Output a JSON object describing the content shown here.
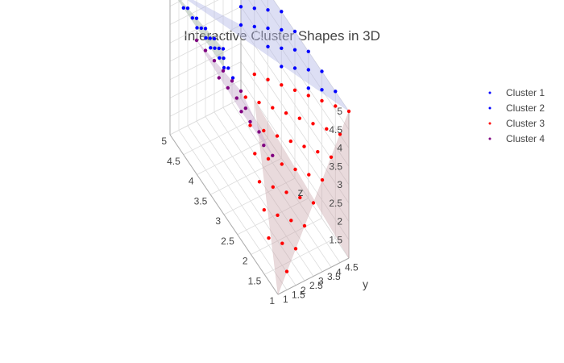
{
  "chart_data": {
    "type": "scatter3d",
    "title": "Interactive Cluster Shapes in 3D",
    "axes": {
      "x": {
        "label": "",
        "range": [
          1,
          5
        ],
        "ticks": [
          "1",
          "1.5",
          "2",
          "2.5",
          "3",
          "3.5",
          "4",
          "4.5",
          "5"
        ]
      },
      "y": {
        "label": "y",
        "range": [
          1,
          5
        ],
        "ticks": [
          "1",
          "1.5",
          "2",
          "2.5",
          "3",
          "3.5",
          "4",
          "4.5"
        ]
      },
      "z": {
        "label": "z",
        "range": [
          1,
          5
        ],
        "ticks": [
          "1.5",
          "2",
          "2.5",
          "3",
          "3.5",
          "4",
          "4.5",
          "5"
        ]
      }
    },
    "legend_position": "top-right",
    "series": [
      {
        "name": "Cluster 1",
        "color": "#0000ff",
        "surface_color": "#b3b8e6",
        "points": [
          [
            5,
            5,
            5
          ],
          [
            5,
            5,
            4.5
          ],
          [
            5,
            5,
            4
          ],
          [
            5,
            5,
            3.5
          ],
          [
            5,
            5,
            3
          ],
          [
            4.5,
            5,
            5
          ],
          [
            4.5,
            5,
            4.5
          ],
          [
            4.5,
            5,
            4
          ],
          [
            4.5,
            5,
            3.5
          ],
          [
            4,
            5,
            5
          ],
          [
            4,
            5,
            4.5
          ],
          [
            4,
            5,
            4
          ],
          [
            4,
            5,
            3.5
          ],
          [
            3.5,
            5,
            5
          ],
          [
            3.5,
            5,
            4.5
          ],
          [
            3.5,
            5,
            4
          ],
          [
            3.5,
            5,
            3.5
          ],
          [
            3,
            5,
            5
          ],
          [
            3,
            5,
            4.5
          ],
          [
            3,
            5,
            4
          ],
          [
            2.5,
            5,
            5
          ],
          [
            2.5,
            5,
            4.5
          ],
          [
            2.5,
            5,
            4
          ],
          [
            2,
            5,
            5
          ],
          [
            2,
            5,
            4.5
          ],
          [
            1.5,
            5,
            5
          ]
        ]
      },
      {
        "name": "Cluster 2",
        "color": "#0000ff",
        "surface_color": "#aab9aa",
        "points": [
          [
            5,
            1,
            5
          ],
          [
            5,
            1.5,
            4.6
          ],
          [
            5,
            2,
            4.2
          ],
          [
            5,
            2.5,
            3.8
          ],
          [
            5,
            3,
            3.4
          ],
          [
            5,
            3.5,
            3
          ],
          [
            5,
            4,
            2.6
          ],
          [
            4.5,
            1,
            5
          ],
          [
            4.5,
            1.5,
            4.6
          ],
          [
            4.5,
            2,
            4.2
          ],
          [
            4.5,
            2.5,
            3.8
          ],
          [
            4.5,
            3,
            3.4
          ],
          [
            4,
            1,
            5
          ],
          [
            4,
            1.5,
            4.6
          ],
          [
            4,
            2,
            4.2
          ],
          [
            4,
            2.5,
            3.8
          ],
          [
            3.5,
            1,
            5
          ],
          [
            3.5,
            1.5,
            4.6
          ],
          [
            3.5,
            2,
            4.2
          ],
          [
            3,
            1,
            5
          ],
          [
            3,
            1.5,
            4.6
          ]
        ]
      },
      {
        "name": "Cluster 3",
        "color": "#ff0000",
        "surface_color": "#c9a3a7",
        "points": [
          [
            1,
            5,
            5
          ],
          [
            1,
            4.5,
            4.5
          ],
          [
            1,
            4,
            4
          ],
          [
            1,
            3.5,
            3.5
          ],
          [
            1,
            3,
            3
          ],
          [
            1,
            2.5,
            2.5
          ],
          [
            1,
            2,
            2
          ],
          [
            1,
            1.5,
            1.5
          ],
          [
            1.5,
            5,
            4.6
          ],
          [
            1.5,
            4.5,
            4.1
          ],
          [
            1.5,
            4,
            3.6
          ],
          [
            1.5,
            3.5,
            3.1
          ],
          [
            1.5,
            3,
            2.6
          ],
          [
            1.5,
            2.5,
            2.1
          ],
          [
            1.5,
            2,
            1.6
          ],
          [
            2,
            5,
            4.2
          ],
          [
            2,
            4.5,
            3.7
          ],
          [
            2,
            4,
            3.2
          ],
          [
            2,
            3.5,
            2.7
          ],
          [
            2,
            3,
            2.2
          ],
          [
            2,
            2.5,
            1.7
          ],
          [
            2,
            2,
            1.2
          ],
          [
            2.5,
            5,
            3.8
          ],
          [
            2.5,
            4.5,
            3.3
          ],
          [
            2.5,
            4,
            2.8
          ],
          [
            2.5,
            3.5,
            2.3
          ],
          [
            2.5,
            3,
            1.8
          ],
          [
            2.5,
            2.5,
            1.3
          ],
          [
            3,
            5,
            3.4
          ],
          [
            3,
            4.5,
            2.9
          ],
          [
            3,
            4,
            2.4
          ],
          [
            3,
            3.5,
            1.9
          ],
          [
            3,
            3,
            1.4
          ],
          [
            3.5,
            5,
            3
          ],
          [
            3.5,
            4.5,
            2.5
          ],
          [
            3.5,
            4,
            2
          ],
          [
            3.5,
            3.5,
            1.5
          ],
          [
            4,
            5,
            2.6
          ],
          [
            4,
            4.5,
            2.1
          ],
          [
            4,
            4,
            1.6
          ],
          [
            4.5,
            5,
            2.2
          ],
          [
            4.5,
            4.5,
            1.7
          ]
        ]
      },
      {
        "name": "Cluster 4",
        "color": "#800080",
        "surface_color": "#c4a6c9",
        "points": [
          [
            5,
            2.5,
            3.2
          ],
          [
            5,
            3,
            2.8
          ],
          [
            5,
            3.5,
            2.4
          ],
          [
            5,
            4,
            2
          ],
          [
            5,
            4.5,
            1.6
          ],
          [
            5,
            5,
            1.2
          ],
          [
            4.5,
            3,
            2.6
          ],
          [
            4.5,
            3.5,
            2.2
          ],
          [
            4.5,
            4,
            1.8
          ],
          [
            4.5,
            4.5,
            1.4
          ],
          [
            4,
            3.5,
            2.1
          ],
          [
            4,
            4,
            1.7
          ],
          [
            4,
            4.5,
            1.3
          ],
          [
            3.5,
            4,
            1.6
          ],
          [
            3.5,
            4.5,
            1.2
          ]
        ]
      }
    ]
  }
}
